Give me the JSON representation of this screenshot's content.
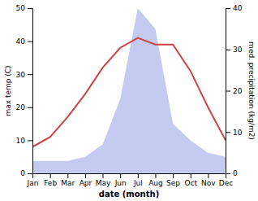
{
  "chart_data": {
    "type": "line",
    "xlabel": "date (month)",
    "ylabel": "max temp (C)",
    "y2label": "med. precipitation (kg/m2)",
    "categories": [
      "Jan",
      "Feb",
      "Mar",
      "Apr",
      "May",
      "Jun",
      "Jul",
      "Aug",
      "Sep",
      "Oct",
      "Nov",
      "Dec"
    ],
    "series": [
      {
        "type": "area",
        "axis": "y2",
        "color": "#c5caf0",
        "values": [
          3,
          3,
          3,
          4,
          7,
          18,
          40,
          35,
          12,
          8,
          5,
          4
        ]
      },
      {
        "type": "line",
        "color": "#cc4444",
        "values": [
          8,
          11,
          17,
          24,
          32,
          38,
          41,
          39,
          39,
          31,
          20,
          10
        ]
      }
    ],
    "ylim": [
      0,
      50
    ],
    "yticks": [
      0,
      10,
      20,
      30,
      40,
      50
    ],
    "y2lim": [
      0,
      40
    ],
    "y2ticks": [
      0,
      10,
      20,
      30,
      40
    ],
    "grid": false
  }
}
